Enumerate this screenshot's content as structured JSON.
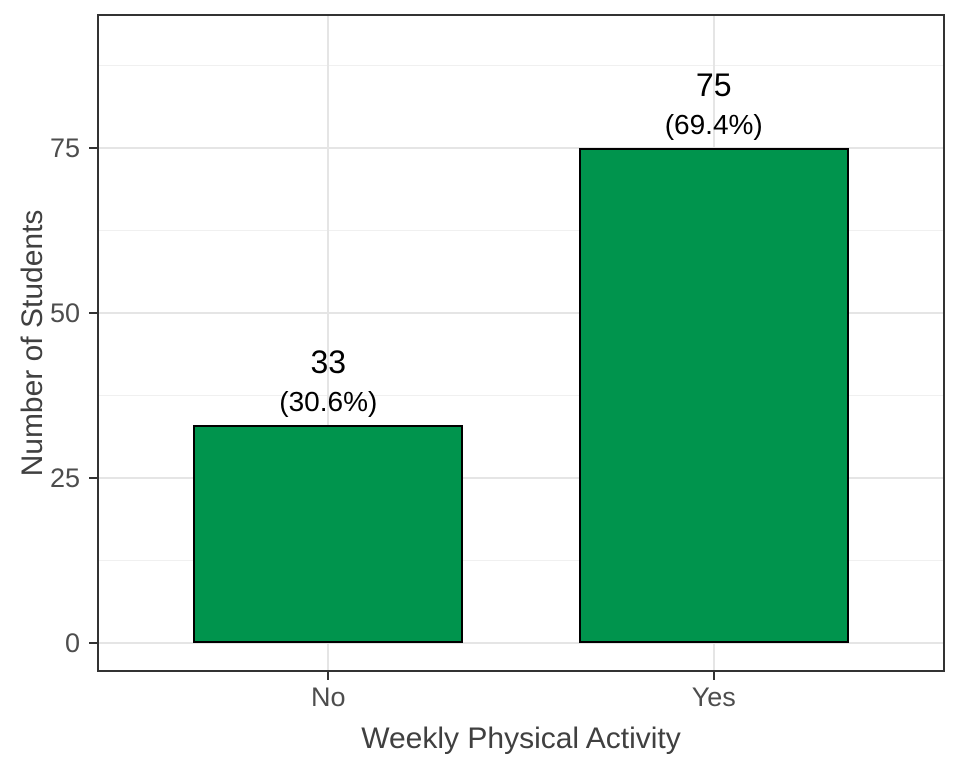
{
  "chart_data": {
    "type": "bar",
    "title": "",
    "xlabel": "Weekly Physical Activity",
    "ylabel": "Number of Students",
    "categories": [
      "No",
      "Yes"
    ],
    "values": [
      33,
      75
    ],
    "bar_labels": [
      {
        "count": "33",
        "pct": "(30.6%)"
      },
      {
        "count": "75",
        "pct": "(69.4%)"
      }
    ],
    "y_ticks": [
      0,
      25,
      50,
      75
    ],
    "y_minor_ticks": [
      12.5,
      37.5,
      62.5,
      87.5
    ],
    "ylim": [
      -4.4,
      95.3
    ],
    "bar_width_fraction": 0.318,
    "grid": "horizontal major+minor, vertical major at category centers",
    "legend": "none",
    "colors": {
      "bar_fill": "#00944D",
      "bar_border": "#000000",
      "grid_major": "#e5e5e5",
      "grid_minor": "#f0f0f0",
      "panel_border": "#333333",
      "tick_label": "#4d4d4d",
      "axis_title": "#404040",
      "bar_label": "#000000",
      "background": "#ffffff"
    }
  }
}
